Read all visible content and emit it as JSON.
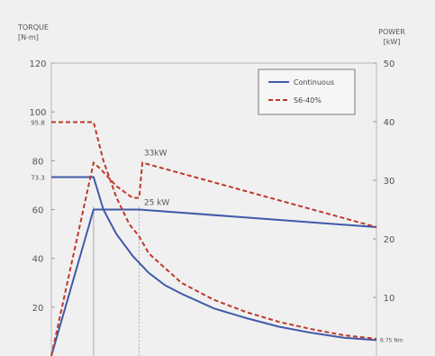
{
  "chart_data": {
    "type": "line",
    "left_axis": {
      "title_lines": [
        "TORQUE",
        "[N-m]"
      ],
      "ylim": [
        0,
        120
      ],
      "ticks": [
        20,
        40,
        60,
        80,
        100,
        120
      ],
      "extra_labels": [
        {
          "value": 95.8,
          "label": "95.8"
        },
        {
          "value": 73.3,
          "label": "73.3"
        }
      ]
    },
    "right_axis": {
      "title_lines": [
        "POWER",
        "[kW]"
      ],
      "ylim": [
        0,
        50
      ],
      "ticks": [
        10,
        20,
        30,
        40,
        50
      ]
    },
    "x_range": [
      0,
      100
    ],
    "reference_lines_x": [
      13,
      27
    ],
    "series": [
      {
        "name": "Continuous",
        "style": "solid",
        "color": "#3f5aa8",
        "curves": [
          {
            "axis": "left",
            "points": [
              [
                0,
                73.3
              ],
              [
                13,
                73.3
              ],
              [
                16,
                60
              ],
              [
                20,
                50
              ],
              [
                25,
                41
              ],
              [
                30,
                34
              ],
              [
                35,
                29
              ],
              [
                40,
                25.5
              ],
              [
                50,
                19.5
              ],
              [
                60,
                15.5
              ],
              [
                70,
                12
              ],
              [
                80,
                9.5
              ],
              [
                90,
                7.5
              ],
              [
                100,
                6.5
              ]
            ]
          },
          {
            "axis": "right",
            "points": [
              [
                0,
                0
              ],
              [
                13,
                25
              ],
              [
                20,
                25
              ],
              [
                27,
                25
              ],
              [
                100,
                22
              ]
            ]
          }
        ]
      },
      {
        "name": "S6-40%",
        "style": "dashed",
        "color": "#c0392b",
        "curves": [
          {
            "axis": "left",
            "points": [
              [
                0,
                95.8
              ],
              [
                13,
                95.8
              ],
              [
                16,
                80
              ],
              [
                20,
                65
              ],
              [
                24,
                54
              ],
              [
                27,
                49
              ],
              [
                30,
                42
              ],
              [
                35,
                36
              ],
              [
                40,
                30
              ],
              [
                50,
                23
              ],
              [
                60,
                18
              ],
              [
                70,
                14
              ],
              [
                80,
                11
              ],
              [
                90,
                8.5
              ],
              [
                100,
                7
              ]
            ]
          },
          {
            "axis": "right",
            "points": [
              [
                0,
                0
              ],
              [
                13,
                33
              ],
              [
                15,
                32
              ],
              [
                20,
                29
              ],
              [
                25,
                27
              ],
              [
                27,
                27
              ],
              [
                28,
                33
              ],
              [
                100,
                22
              ]
            ]
          }
        ]
      }
    ],
    "annotations": [
      {
        "text": "33kW",
        "x": 28.5,
        "y": 34.2,
        "axis": "right"
      },
      {
        "text": "25 kW",
        "x": 28.5,
        "y": 25.8,
        "axis": "right"
      },
      {
        "text": "6.75 Nm",
        "x": 100,
        "y": 6.75,
        "axis": "left"
      }
    ],
    "legend": {
      "position": "top-right"
    }
  }
}
